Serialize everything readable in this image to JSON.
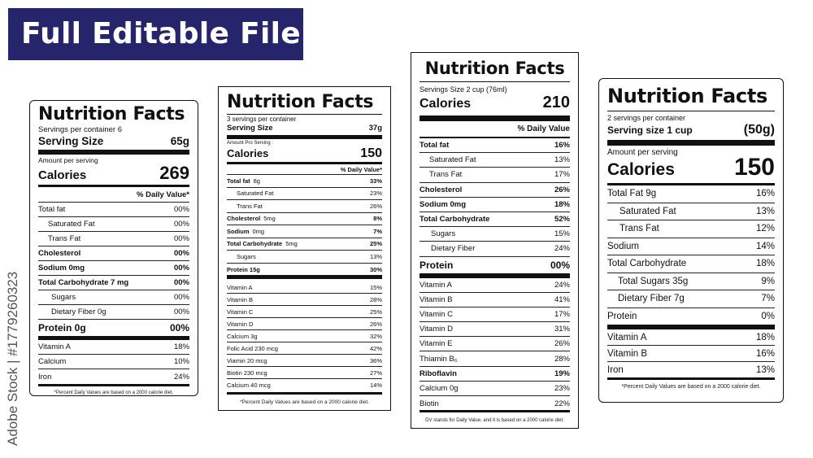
{
  "banner": {
    "title": "Full Editable File"
  },
  "watermark": {
    "text": "Adobe Stock | #1779260323"
  },
  "label1": {
    "title": "Nutrition Facts",
    "servings": "Servings per container 6",
    "serving_size_label": "Serving Size",
    "serving_size_value": "65g",
    "amount_per_serving": "Amount per serving",
    "calories_label": "Calories",
    "calories_value": "269",
    "dv_header": "% Daily Value*",
    "rows": [
      {
        "name": "Total fat",
        "value": "00%"
      },
      {
        "name": "Saturated Fat",
        "value": "00%"
      },
      {
        "name": "Trans Fat",
        "value": "00%"
      },
      {
        "name": "Cholesterol",
        "value": "00%"
      },
      {
        "name": "Sodium 0mg",
        "value": "00%"
      },
      {
        "name": "Total Carbohydrate 7 mg",
        "value": "00%"
      },
      {
        "name": "Sugars",
        "value": "00%"
      },
      {
        "name": "Dietary Fiber 0g",
        "value": "00%"
      }
    ],
    "protein_label": "Protein 0g",
    "protein_value": "00%",
    "vitamins": [
      {
        "name": "Vitamin A",
        "value": "18%"
      },
      {
        "name": "Calcium",
        "value": "10%"
      },
      {
        "name": "Iron",
        "value": "24%"
      }
    ],
    "footnote": "*Percent Daily Values are based on a 2000 calorie diet."
  },
  "label2": {
    "title": "Nutrition Facts",
    "servings": "3 servings per container",
    "serving_size_label": "Serving Size",
    "serving_size_value": "37g",
    "amount_per_serving": "Amount Pro Serving :",
    "calories_label": "Calories",
    "calories_value": "150",
    "dv_header": "% Daily Value*",
    "rows": [
      {
        "name": "Total fat",
        "amount": "8g",
        "value": "33%"
      },
      {
        "name": "Saturated Fat",
        "amount": "",
        "value": "23%"
      },
      {
        "name": "Trans Fat",
        "amount": "",
        "value": "26%"
      },
      {
        "name": "Cholesterol",
        "amount": "5mg",
        "value": "8%"
      },
      {
        "name": "Sodium",
        "amount": "0mg",
        "value": "7%"
      },
      {
        "name": "Total Carbohydrate",
        "amount": "5mg",
        "value": "25%"
      },
      {
        "name": "Sugars",
        "amount": "",
        "value": "13%"
      },
      {
        "name": "Protein 15g",
        "amount": "",
        "value": "30%"
      }
    ],
    "vitamins": [
      {
        "name": "Vitamin A",
        "value": "15%"
      },
      {
        "name": "Vitamin B",
        "value": "28%"
      },
      {
        "name": "Vitamin C",
        "value": "25%"
      },
      {
        "name": "Vitamin D",
        "value": "26%"
      },
      {
        "name": "Calcium 3g",
        "value": "32%"
      },
      {
        "name": "Folic Acid 230 mcg",
        "value": "42%"
      },
      {
        "name": "Viamin 20 mcg",
        "value": "36%"
      },
      {
        "name": "Biotin 230 mcg",
        "value": "27%"
      },
      {
        "name": "Calcium 40 mcg",
        "value": "14%"
      }
    ],
    "footnote": "*Percent Daily Values are based on a 2000 calorie diet."
  },
  "label3": {
    "title": "Nutrition Facts",
    "servings": "Servings Size 2 cup (76ml)",
    "calories_label": "Calories",
    "calories_value": "210",
    "dv_header": "% Daily Value",
    "rows": [
      {
        "name": "Total fat",
        "value": "16%"
      },
      {
        "name": "Saturated Fat",
        "value": "13%"
      },
      {
        "name": "Trans Fat",
        "value": "17%"
      },
      {
        "name": "Cholesterol",
        "value": "26%"
      },
      {
        "name": "Sodium 0mg",
        "value": "18%"
      },
      {
        "name": "Total Carbohydrate",
        "value": "52%"
      },
      {
        "name": "Sugars",
        "value": "15%"
      },
      {
        "name": "Dietary Fiber",
        "value": "24%"
      }
    ],
    "protein_label": "Protein",
    "protein_value": "00%",
    "vitamins": [
      {
        "name": "Vitamin A",
        "value": "24%"
      },
      {
        "name": "Vitamin B",
        "value": "41%"
      },
      {
        "name": "Vitamin C",
        "value": "17%"
      },
      {
        "name": "Vitamin D",
        "value": "31%"
      },
      {
        "name": "Vitamin E",
        "value": "26%"
      },
      {
        "name": "Thiamin B₆",
        "value": "28%"
      },
      {
        "name": "Riboflavin",
        "value": "19%"
      },
      {
        "name": "Calcium 0g",
        "value": "23%"
      },
      {
        "name": "Biotin",
        "value": "22%"
      }
    ],
    "footnote": "DV stands for Daily Value, and it is based on a 2000 calorie diet."
  },
  "label4": {
    "title": "Nutrition Facts",
    "servings": "2 servings per container",
    "serving_size_label": "Serving size 1 cup",
    "serving_size_value": "(50g)",
    "amount_per_serving": "Amount per serving",
    "calories_label": "Calories",
    "calories_value": "150",
    "rows": [
      {
        "name": "Total Fat   9g",
        "value": "16%"
      },
      {
        "name": "Saturated Fat",
        "value": "13%"
      },
      {
        "name": "Trans Fat",
        "value": "12%"
      },
      {
        "name": "Sodium",
        "value": "14%"
      },
      {
        "name": "Total Carbohydrate",
        "value": "18%"
      },
      {
        "name": "Total Sugars  35g",
        "value": "9%"
      },
      {
        "name": "Dietary Fiber  7g",
        "value": "7%"
      },
      {
        "name": "Protein",
        "value": "0%"
      }
    ],
    "vitamins": [
      {
        "name": "Vitamin A",
        "value": "18%"
      },
      {
        "name": "Vitamin B",
        "value": "16%"
      },
      {
        "name": "Iron",
        "value": "13%"
      }
    ],
    "footnote": "*Percent Daily Values are based on a 2000 calorie diet."
  }
}
